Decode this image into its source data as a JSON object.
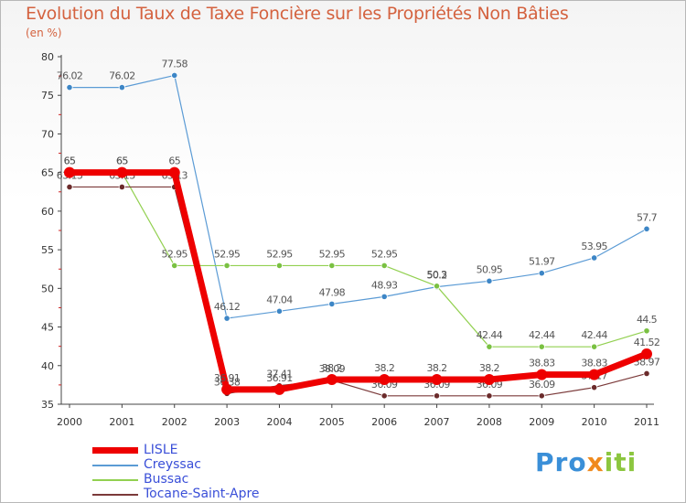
{
  "chart_data": {
    "type": "line",
    "title": "Evolution du Taux de Taxe Foncière sur les Propriétés Non Bâties",
    "subtitle": "(en %)",
    "xlabel": "",
    "ylabel": "",
    "x": [
      "2000",
      "2001",
      "2002",
      "2003",
      "2004",
      "2005",
      "2006",
      "2007",
      "2008",
      "2009",
      "2010",
      "2011"
    ],
    "ylim": [
      35,
      80
    ],
    "yticks": [
      35,
      40,
      45,
      50,
      55,
      60,
      65,
      70,
      75,
      80
    ],
    "grid": false,
    "series": [
      {
        "name": "Creyssac",
        "color": "#5b9bd5",
        "marker": "#3d86c6",
        "width": 1.2,
        "values": [
          76.02,
          76.02,
          77.58,
          46.12,
          47.04,
          47.98,
          48.93,
          50.2,
          50.95,
          51.97,
          53.95,
          57.7
        ],
        "labels": [
          "76.02",
          "76.02",
          "77.58",
          "46.12",
          "47.04",
          "47.98",
          "48.93",
          "50.2",
          "50.95",
          "51.97",
          "53.95",
          "57.7"
        ]
      },
      {
        "name": "Bussac",
        "color": "#92d050",
        "marker": "#7ac142",
        "width": 1.2,
        "values": [
          65,
          65,
          52.95,
          52.95,
          52.95,
          52.95,
          52.95,
          50.3,
          42.44,
          42.44,
          42.44,
          44.5
        ],
        "labels": [
          "65",
          "65",
          "52.95",
          "52.95",
          "52.95",
          "52.95",
          "52.95",
          "50.3",
          "42.44",
          "42.44",
          "42.44",
          "44.5"
        ]
      },
      {
        "name": "Tocane-Saint-Apre",
        "color": "#7b3a3a",
        "marker": "#6b2b2b",
        "width": 1.2,
        "values": [
          63.13,
          63.13,
          63.13,
          36.38,
          37.41,
          38.09,
          36.09,
          36.09,
          36.09,
          36.09,
          37.17,
          38.97
        ],
        "labels": [
          "63.13",
          "63.13",
          "63.13",
          "36.38",
          "37.41",
          "38.09",
          "36.09",
          "36.09",
          "36.09",
          "36.09",
          "37.17",
          "38.97"
        ]
      },
      {
        "name": "LISLE",
        "color": "#ee0000",
        "marker": "#ee0000",
        "width": 7,
        "values": [
          65,
          65,
          65,
          36.91,
          36.91,
          38.2,
          38.2,
          38.2,
          38.2,
          38.83,
          38.83,
          41.52
        ],
        "labels": [
          "65",
          "65",
          "65",
          "36.91",
          "36.91",
          "38.2",
          "38.2",
          "38.2",
          "38.2",
          "38.83",
          "38.83",
          "41.52"
        ]
      }
    ],
    "legend_order": [
      "LISLE",
      "Creyssac",
      "Bussac",
      "Tocane-Saint-Apre"
    ]
  },
  "brand": {
    "p1": "Pro",
    "p2": "x",
    "p3": "iti"
  }
}
